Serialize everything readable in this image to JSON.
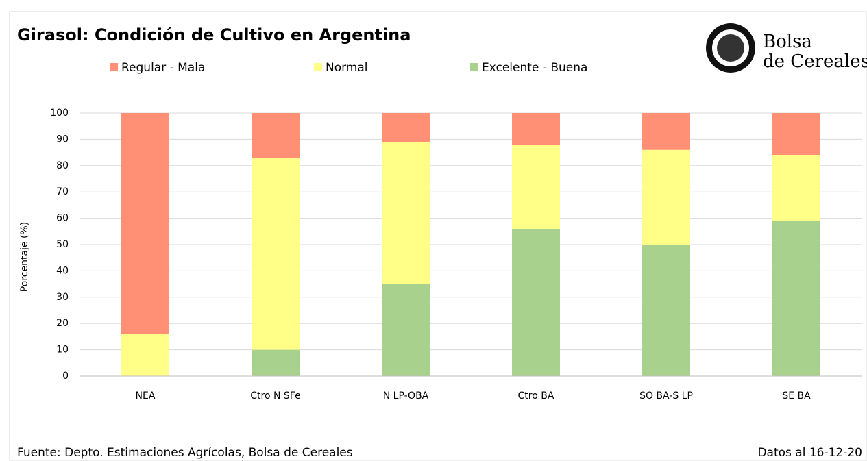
{
  "chart_data": {
    "type": "stacked_bar",
    "title": "Girasol: Condición de Cultivo en Argentina",
    "ylabel": "Porcentaje (%)",
    "categories": [
      "NEA",
      "Ctro N SFe",
      "N LP-OBA",
      "Ctro BA",
      "SO BA-S LP",
      "SE BA"
    ],
    "series": [
      {
        "name": "Regular - Mala",
        "color": "#ff8f75",
        "values": [
          84,
          17,
          11,
          12,
          14,
          16
        ]
      },
      {
        "name": "Normal",
        "color": "#ffff88",
        "values": [
          16,
          73,
          54,
          32,
          36,
          25
        ]
      },
      {
        "name": "Excelente - Buena",
        "color": "#a9d18e",
        "values": [
          0,
          10,
          35,
          56,
          50,
          59
        ]
      }
    ],
    "ylim": [
      0,
      100
    ],
    "yticks": [
      0,
      10,
      20,
      30,
      40,
      50,
      60,
      70,
      80,
      90,
      100
    ],
    "grid": true,
    "legend": "top"
  },
  "logo": {
    "line1": "Bolsa",
    "line2": "de Cereales"
  },
  "footer": {
    "source": "Fuente: Depto. Estimaciones Agrícolas, Bolsa de Cereales",
    "date": "Datos al 16-12-20"
  }
}
